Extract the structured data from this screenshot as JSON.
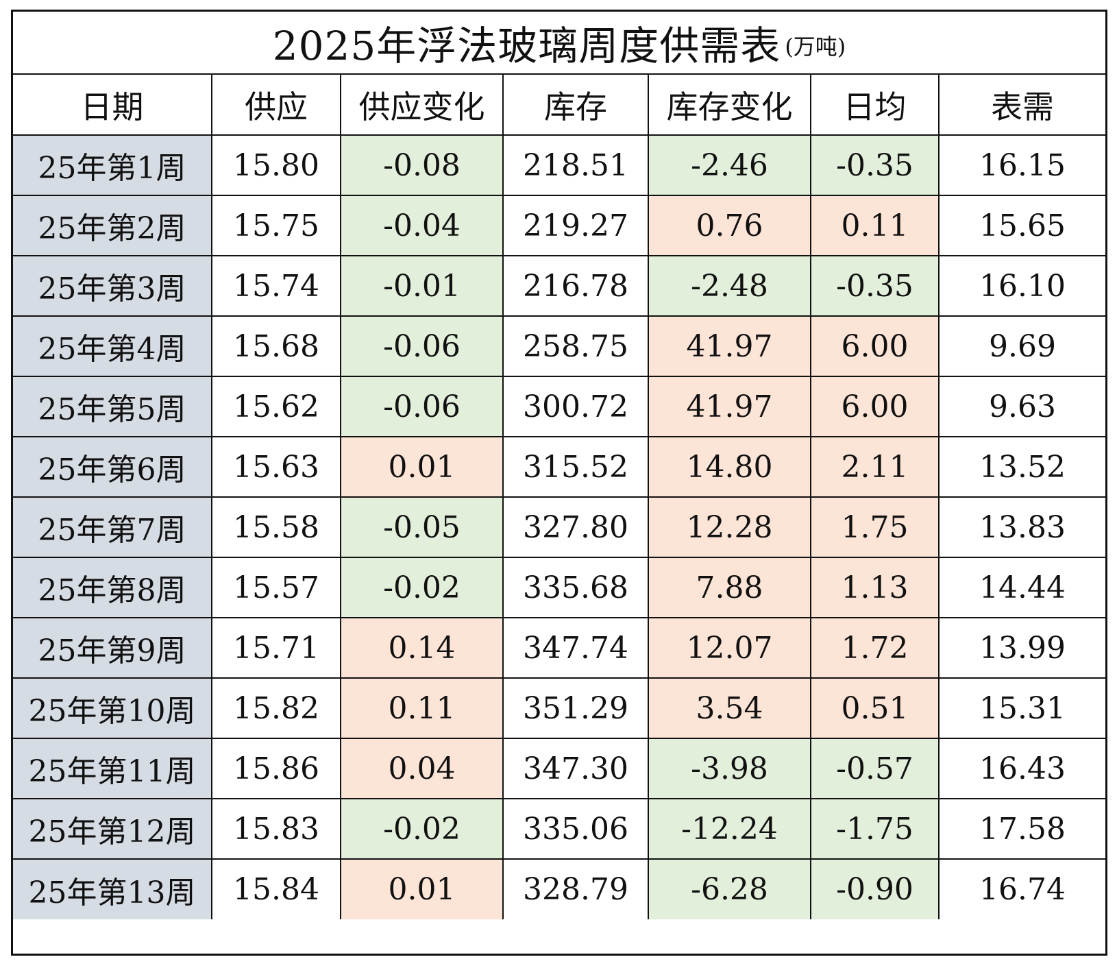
{
  "title": "2025年浮法玻璃周度供需表",
  "unit": "(万吨)",
  "headers": [
    "日期",
    "供应",
    "供应变化",
    "库存",
    "库存变化",
    "日均",
    "表需"
  ],
  "colors": {
    "date_column": "#d6dce4",
    "increase": "#fce4d6",
    "decrease": "#e2efda",
    "border": "#111111"
  },
  "rows": [
    {
      "date": "25年第1周",
      "supply": "15.80",
      "supply_change": "-0.08",
      "inventory": "218.51",
      "inventory_change": "-2.46",
      "daily_avg": "-0.35",
      "apparent_demand": "16.15"
    },
    {
      "date": "25年第2周",
      "supply": "15.75",
      "supply_change": "-0.04",
      "inventory": "219.27",
      "inventory_change": "0.76",
      "daily_avg": "0.11",
      "apparent_demand": "15.65"
    },
    {
      "date": "25年第3周",
      "supply": "15.74",
      "supply_change": "-0.01",
      "inventory": "216.78",
      "inventory_change": "-2.48",
      "daily_avg": "-0.35",
      "apparent_demand": "16.10"
    },
    {
      "date": "25年第4周",
      "supply": "15.68",
      "supply_change": "-0.06",
      "inventory": "258.75",
      "inventory_change": "41.97",
      "daily_avg": "6.00",
      "apparent_demand": "9.69"
    },
    {
      "date": "25年第5周",
      "supply": "15.62",
      "supply_change": "-0.06",
      "inventory": "300.72",
      "inventory_change": "41.97",
      "daily_avg": "6.00",
      "apparent_demand": "9.63"
    },
    {
      "date": "25年第6周",
      "supply": "15.63",
      "supply_change": "0.01",
      "inventory": "315.52",
      "inventory_change": "14.80",
      "daily_avg": "2.11",
      "apparent_demand": "13.52"
    },
    {
      "date": "25年第7周",
      "supply": "15.58",
      "supply_change": "-0.05",
      "inventory": "327.80",
      "inventory_change": "12.28",
      "daily_avg": "1.75",
      "apparent_demand": "13.83"
    },
    {
      "date": "25年第8周",
      "supply": "15.57",
      "supply_change": "-0.02",
      "inventory": "335.68",
      "inventory_change": "7.88",
      "daily_avg": "1.13",
      "apparent_demand": "14.44"
    },
    {
      "date": "25年第9周",
      "supply": "15.71",
      "supply_change": "0.14",
      "inventory": "347.74",
      "inventory_change": "12.07",
      "daily_avg": "1.72",
      "apparent_demand": "13.99"
    },
    {
      "date": "25年第10周",
      "supply": "15.82",
      "supply_change": "0.11",
      "inventory": "351.29",
      "inventory_change": "3.54",
      "daily_avg": "0.51",
      "apparent_demand": "15.31"
    },
    {
      "date": "25年第11周",
      "supply": "15.86",
      "supply_change": "0.04",
      "inventory": "347.30",
      "inventory_change": "-3.98",
      "daily_avg": "-0.57",
      "apparent_demand": "16.43"
    },
    {
      "date": "25年第12周",
      "supply": "15.83",
      "supply_change": "-0.02",
      "inventory": "335.06",
      "inventory_change": "-12.24",
      "daily_avg": "-1.75",
      "apparent_demand": "17.58"
    },
    {
      "date": "25年第13周",
      "supply": "15.84",
      "supply_change": "0.01",
      "inventory": "328.79",
      "inventory_change": "-6.28",
      "daily_avg": "-0.90",
      "apparent_demand": "16.74"
    }
  ]
}
